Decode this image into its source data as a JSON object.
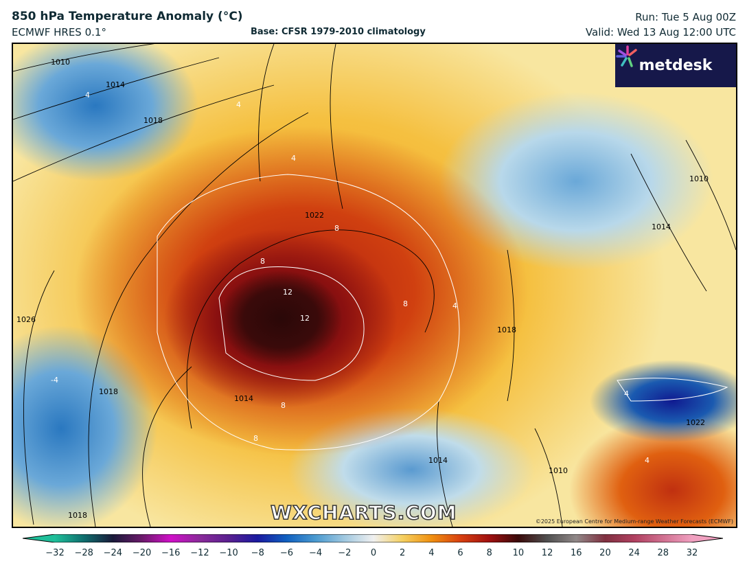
{
  "header": {
    "title": "850 hPa Temperature Anomaly (°C)",
    "model": "ECMWF HRES 0.1°",
    "base": "Base: CFSR 1979-2010 climatology",
    "run": "Run: Tue 5 Aug 00Z",
    "valid": "Valid: Wed 13 Aug 12:00 UTC"
  },
  "logo": {
    "text": "metdesk"
  },
  "watermark": "WXCHARTS.COM",
  "copyright": "©2025 European Centre for Medium-range Weather Forecasts (ECMWF)",
  "isobar_labels": [
    "1010",
    "1014",
    "1018",
    "1022",
    "1026",
    "1014",
    "1018",
    "1010",
    "1014",
    "1010",
    "1014",
    "1018",
    "1022",
    "1018"
  ],
  "anomaly_labels": [
    "4",
    "4",
    "4",
    "8",
    "8",
    "12",
    "12",
    "8",
    "8",
    "8",
    "4",
    "-4",
    "4",
    "4"
  ],
  "colorbar": {
    "ticks": [
      "−32",
      "−28",
      "−24",
      "−20",
      "−16",
      "−12",
      "−10",
      "−8",
      "−6",
      "−4",
      "−2",
      "0",
      "2",
      "4",
      "6",
      "8",
      "10",
      "12",
      "16",
      "20",
      "24",
      "28",
      "32"
    ],
    "colors": [
      "#1fbf9a",
      "#0f6e6e",
      "#1a1a3a",
      "#6a1a6a",
      "#d010c8",
      "#8a2a9a",
      "#5a2090",
      "#1a1aa0",
      "#1060c0",
      "#4a9ad0",
      "#a0c8e0",
      "#f0f0f0",
      "#f5d060",
      "#f09010",
      "#d84010",
      "#a01010",
      "#3a0a0a",
      "#505050",
      "#908888",
      "#803040",
      "#b04060",
      "#d07090",
      "#f0a0c0"
    ]
  }
}
